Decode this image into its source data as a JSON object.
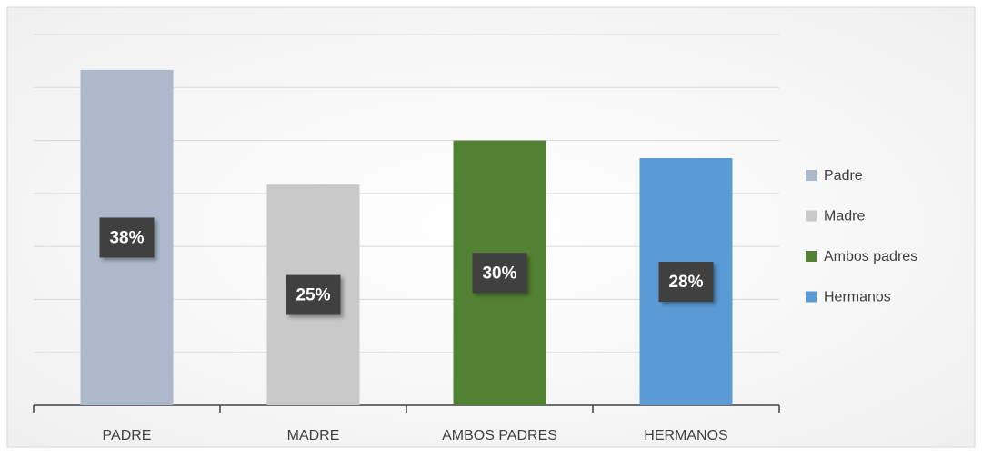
{
  "chart_data": {
    "type": "bar",
    "categories": [
      "PADRE",
      "MADRE",
      "AMBOS PADRES",
      "HERMANOS"
    ],
    "values": [
      38,
      25,
      30,
      28
    ],
    "value_labels": [
      "38%",
      "25%",
      "30%",
      "28%"
    ],
    "colors": [
      "#adb9ca",
      "#c9c9c9",
      "#548235",
      "#5b9bd5"
    ],
    "legend_labels": [
      "Padre",
      "Madre",
      "Ambos padres",
      "Hermanos"
    ],
    "legend_position": "right",
    "ylim": [
      0,
      42
    ],
    "yticks": [
      0,
      6,
      12,
      18,
      24,
      30,
      36,
      42
    ],
    "show_ytick_labels": false,
    "grid": true
  }
}
